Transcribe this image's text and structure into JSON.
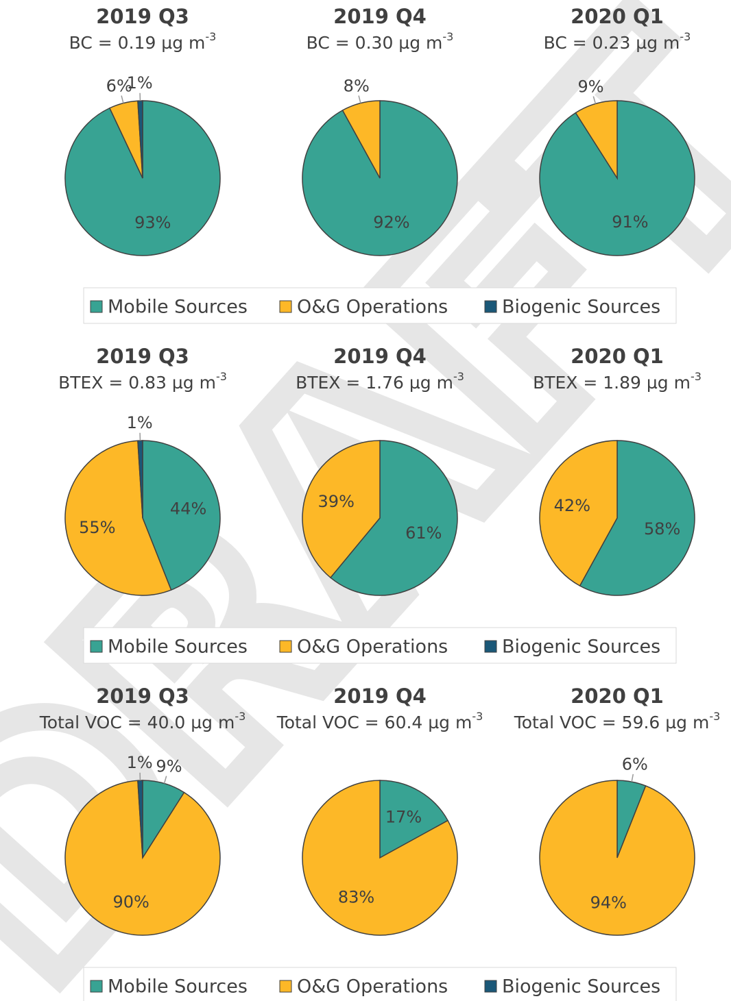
{
  "watermark": "DRAFT",
  "chart_data": [
    {
      "type": "pie",
      "title": "2019 Q3",
      "subtitle": "BC = 0.19 µg m",
      "subtitle_superscript": "-3",
      "categories": [
        "Mobile Sources",
        "O&G Operations",
        "Biogenic Sources"
      ],
      "values": [
        93,
        6,
        1
      ],
      "value_labels": [
        "93%",
        "6%",
        "1%"
      ],
      "colors": [
        "#38a393",
        "#fdb827",
        "#1b5878"
      ]
    },
    {
      "type": "pie",
      "title": "2019 Q4",
      "subtitle": "BC = 0.30 µg m",
      "subtitle_superscript": "-3",
      "categories": [
        "Mobile Sources",
        "O&G Operations"
      ],
      "values": [
        92,
        8
      ],
      "value_labels": [
        "92%",
        "8%"
      ],
      "colors": [
        "#38a393",
        "#fdb827"
      ]
    },
    {
      "type": "pie",
      "title": "2020 Q1",
      "subtitle": "BC = 0.23 µg m",
      "subtitle_superscript": "-3",
      "categories": [
        "Mobile Sources",
        "O&G Operations"
      ],
      "values": [
        91,
        9
      ],
      "value_labels": [
        "91%",
        "9%"
      ],
      "colors": [
        "#38a393",
        "#fdb827"
      ]
    },
    {
      "type": "pie",
      "title": "2019 Q3",
      "subtitle": "BTEX = 0.83 µg m",
      "subtitle_superscript": "-3",
      "categories": [
        "Mobile Sources",
        "O&G Operations",
        "Biogenic Sources"
      ],
      "values": [
        44,
        55,
        1
      ],
      "value_labels": [
        "44%",
        "55%",
        "1%"
      ],
      "colors": [
        "#38a393",
        "#fdb827",
        "#1b5878"
      ]
    },
    {
      "type": "pie",
      "title": "2019 Q4",
      "subtitle": "BTEX = 1.76 µg m",
      "subtitle_superscript": "-3",
      "categories": [
        "Mobile Sources",
        "O&G Operations"
      ],
      "values": [
        61,
        39
      ],
      "value_labels": [
        "61%",
        "39%"
      ],
      "colors": [
        "#38a393",
        "#fdb827"
      ]
    },
    {
      "type": "pie",
      "title": "2020 Q1",
      "subtitle": "BTEX = 1.89 µg m",
      "subtitle_superscript": "-3",
      "categories": [
        "Mobile Sources",
        "O&G Operations"
      ],
      "values": [
        58,
        42
      ],
      "value_labels": [
        "58%",
        "42%"
      ],
      "colors": [
        "#38a393",
        "#fdb827"
      ]
    },
    {
      "type": "pie",
      "title": "2019 Q3",
      "subtitle": "Total VOC = 40.0 µg m",
      "subtitle_superscript": "-3",
      "categories": [
        "Mobile Sources",
        "O&G Operations",
        "Biogenic Sources"
      ],
      "values": [
        9,
        90,
        1
      ],
      "value_labels": [
        "9%",
        "90%",
        "1%"
      ],
      "colors": [
        "#38a393",
        "#fdb827",
        "#1b5878"
      ]
    },
    {
      "type": "pie",
      "title": "2019 Q4",
      "subtitle": "Total VOC = 60.4 µg m",
      "subtitle_superscript": "-3",
      "categories": [
        "Mobile Sources",
        "O&G Operations"
      ],
      "values": [
        17,
        83
      ],
      "value_labels": [
        "17%",
        "83%"
      ],
      "colors": [
        "#38a393",
        "#fdb827"
      ]
    },
    {
      "type": "pie",
      "title": "2020 Q1",
      "subtitle": "Total VOC = 59.6 µg m",
      "subtitle_superscript": "-3",
      "categories": [
        "Mobile Sources",
        "O&G Operations"
      ],
      "values": [
        6,
        94
      ],
      "value_labels": [
        "6%",
        "94%"
      ],
      "colors": [
        "#38a393",
        "#fdb827"
      ]
    }
  ]
}
